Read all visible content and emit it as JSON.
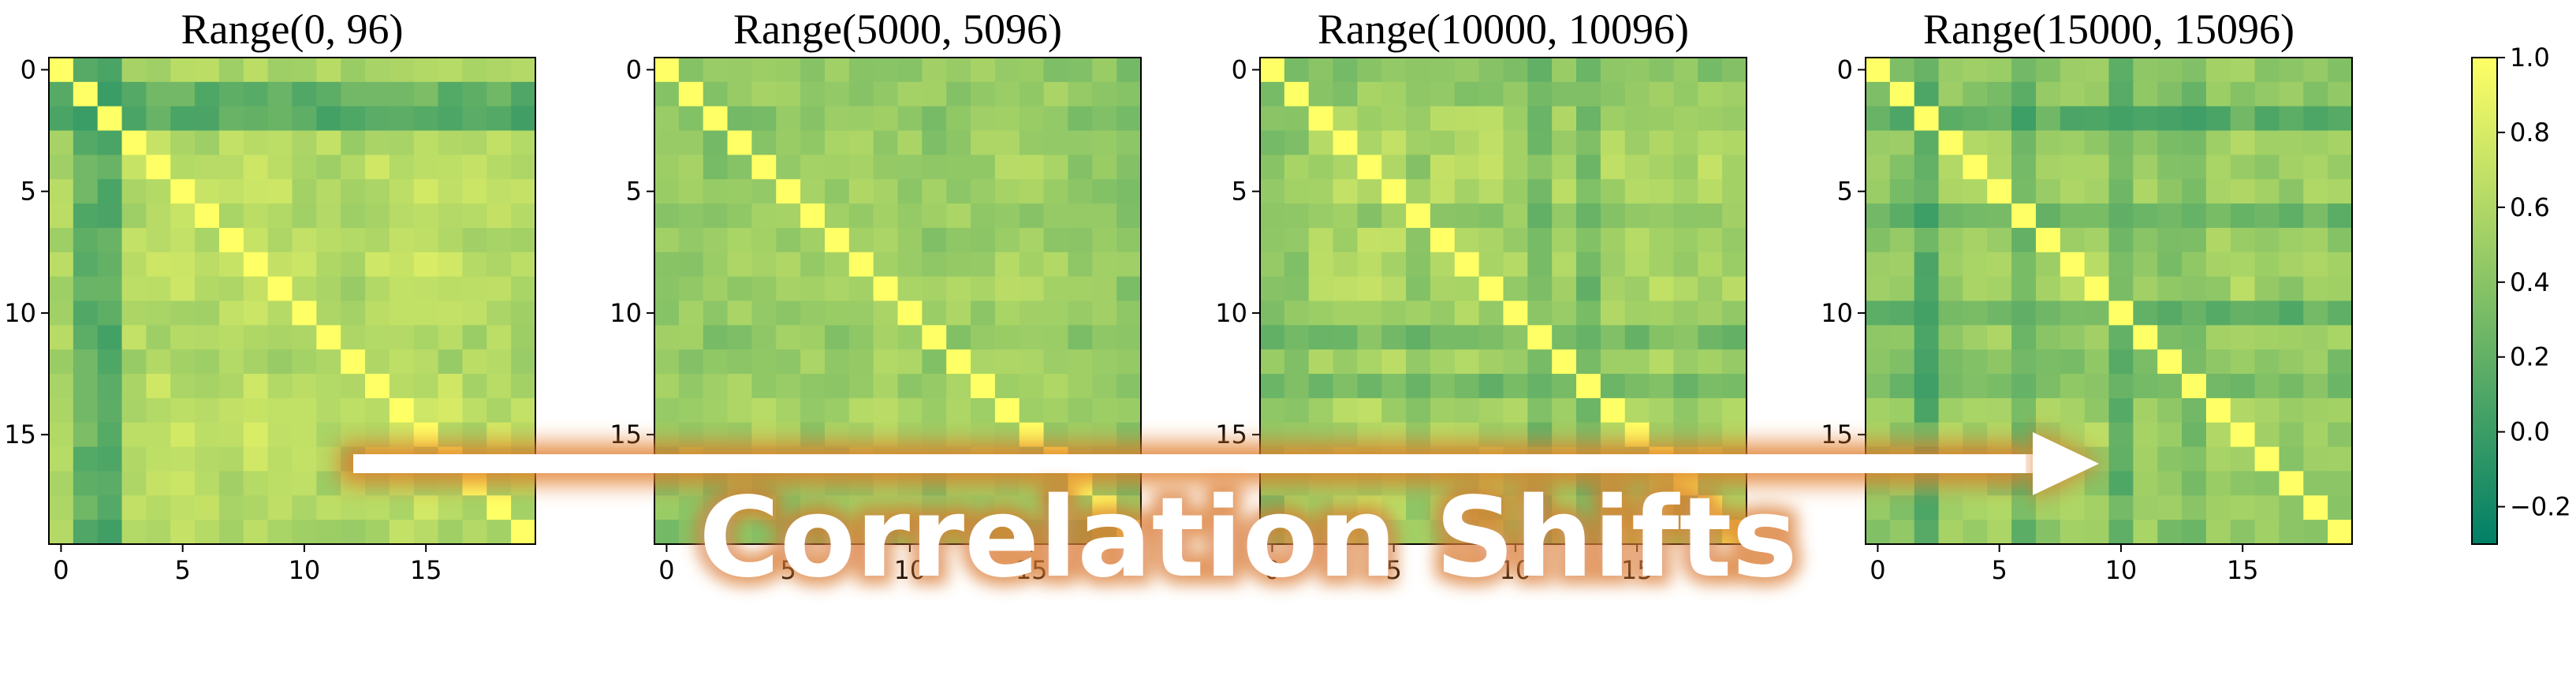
{
  "chart_data": {
    "type": "heatmap",
    "size": 20,
    "colormap": {
      "name": "summer_r",
      "low_color": "#007f66",
      "high_color": "#ffff66",
      "vmin": -0.3,
      "vmax": 1.0
    },
    "colorbar": {
      "ticks": [
        1.0,
        0.8,
        0.6,
        0.4,
        0.2,
        0.0,
        -0.2
      ],
      "tick_labels": [
        "1.0",
        "0.8",
        "0.6",
        "0.4",
        "0.2",
        "0.0",
        "−0.2"
      ]
    },
    "axis_ticks": [
      0,
      5,
      10,
      15
    ],
    "axis_tick_labels": [
      "0",
      "5",
      "10",
      "15"
    ],
    "panels": [
      {
        "title": "Range(0, 96)",
        "row_corr": [
          0.55,
          0.05,
          -0.05,
          0.62,
          0.7,
          0.66,
          0.58,
          0.68,
          0.72,
          0.65,
          0.6,
          0.55,
          0.5,
          0.62,
          0.72,
          0.7,
          0.68,
          0.6,
          0.62,
          0.58
        ],
        "bias": 0.05,
        "seed": 11
      },
      {
        "title": "Range(5000, 5096)",
        "row_corr": [
          0.45,
          0.48,
          0.4,
          0.5,
          0.55,
          0.5,
          0.48,
          0.55,
          0.6,
          0.58,
          0.5,
          0.45,
          0.58,
          0.55,
          0.62,
          0.6,
          0.52,
          0.48,
          0.45,
          0.4
        ],
        "bias": 0.0,
        "seed": 29
      },
      {
        "title": "Range(10000, 10096)",
        "row_corr": [
          0.35,
          0.4,
          0.55,
          0.62,
          0.65,
          0.6,
          0.42,
          0.62,
          0.66,
          0.62,
          0.5,
          0.25,
          0.55,
          0.2,
          0.6,
          0.55,
          0.62,
          0.5,
          0.6,
          0.55
        ],
        "bias": 0.02,
        "seed": 47
      },
      {
        "title": "Range(15000, 15096)",
        "row_corr": [
          0.45,
          0.4,
          0.1,
          0.55,
          0.6,
          0.55,
          0.2,
          0.55,
          0.58,
          0.62,
          0.15,
          0.5,
          0.4,
          0.3,
          0.55,
          0.58,
          0.52,
          0.45,
          0.55,
          0.5
        ],
        "bias": 0.0,
        "seed": 83
      }
    ],
    "annotation": "Correlation Shifts"
  }
}
